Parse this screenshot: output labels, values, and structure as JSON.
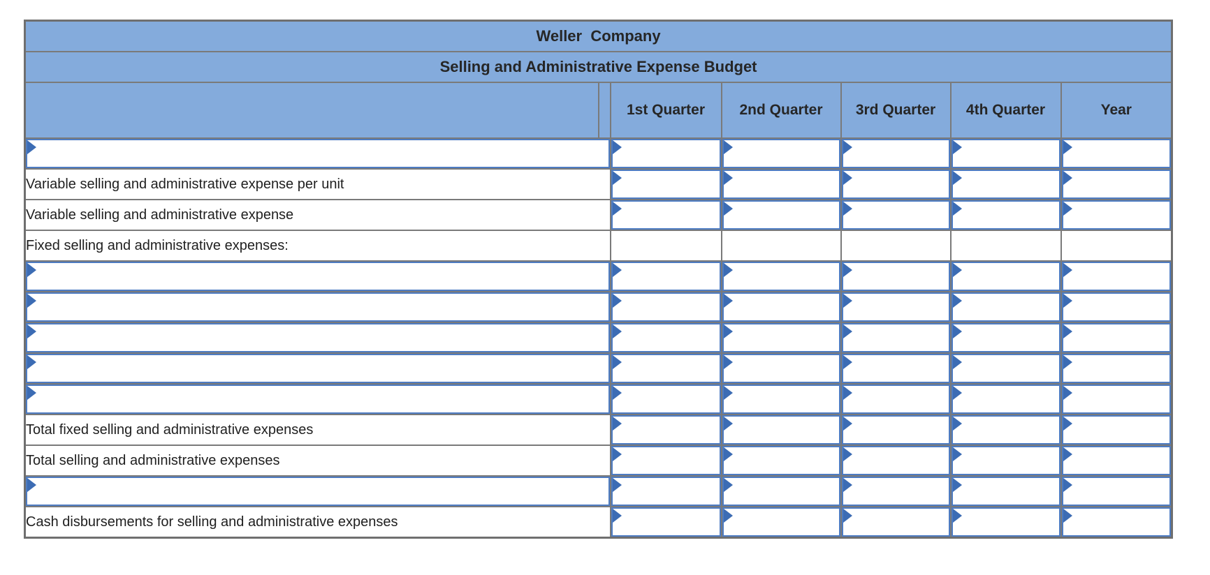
{
  "table": {
    "title": "Weller  Company",
    "subtitle": "Selling and Administrative Expense Budget",
    "columns": [
      "",
      "1st Quarter",
      "2nd Quarter",
      "3rd Quarter",
      "4th Quarter",
      "Year"
    ],
    "column_keys": [
      "1st-quarter",
      "2nd-quarter",
      "3rd-quarter",
      "4th-quarter",
      "year"
    ],
    "rows": [
      {
        "label": "",
        "label_editable": true,
        "values_editable": true,
        "rule_below": "none",
        "values": [
          "",
          "",
          "",
          "",
          ""
        ]
      },
      {
        "label": "Variable selling and administrative expense per unit",
        "label_editable": false,
        "values_editable": true,
        "rule_below": "single",
        "values": [
          "",
          "",
          "",
          "",
          ""
        ]
      },
      {
        "label": "Variable selling and administrative expense",
        "label_editable": false,
        "values_editable": true,
        "rule_below": "none",
        "values": [
          "",
          "",
          "",
          "",
          ""
        ]
      },
      {
        "label": "Fixed selling and administrative expenses:",
        "label_editable": false,
        "values_editable": false,
        "rule_below": "none",
        "values": [
          "",
          "",
          "",
          "",
          ""
        ]
      },
      {
        "label": "",
        "label_editable": true,
        "values_editable": true,
        "rule_below": "none",
        "values": [
          "",
          "",
          "",
          "",
          ""
        ]
      },
      {
        "label": "",
        "label_editable": true,
        "values_editable": true,
        "rule_below": "none",
        "values": [
          "",
          "",
          "",
          "",
          ""
        ]
      },
      {
        "label": "",
        "label_editable": true,
        "values_editable": true,
        "rule_below": "none",
        "values": [
          "",
          "",
          "",
          "",
          ""
        ]
      },
      {
        "label": "",
        "label_editable": true,
        "values_editable": true,
        "rule_below": "none",
        "values": [
          "",
          "",
          "",
          "",
          ""
        ]
      },
      {
        "label": "",
        "label_editable": true,
        "values_editable": true,
        "rule_below": "single",
        "values": [
          "",
          "",
          "",
          "",
          ""
        ]
      },
      {
        "label": "Total fixed selling and administrative expenses",
        "label_editable": false,
        "values_editable": true,
        "rule_below": "single",
        "values": [
          "",
          "",
          "",
          "",
          ""
        ]
      },
      {
        "label": "Total selling and administrative expenses",
        "label_editable": false,
        "values_editable": true,
        "rule_below": "none",
        "values": [
          "",
          "",
          "",
          "",
          ""
        ]
      },
      {
        "label": "",
        "label_editable": true,
        "values_editable": true,
        "rule_below": "single",
        "values": [
          "",
          "",
          "",
          "",
          ""
        ]
      },
      {
        "label": "Cash disbursements for selling and administrative expenses",
        "label_editable": false,
        "values_editable": true,
        "rule_below": "thick",
        "values": [
          "",
          "",
          "",
          "",
          ""
        ]
      }
    ]
  },
  "icons": {
    "cell_marker": "entry-cell-flag-marker"
  },
  "colors": {
    "header_bg": "#84ABDC",
    "grid_line": "#7A7A7A",
    "outer_border": "#6F6F6F",
    "entry_outline": "#4E7CC2",
    "marker_blue": "#3C6CB4",
    "rule_line": "#000000",
    "label_text": "#1F1F1F",
    "header_text": "#262626",
    "cell_bg": "#FFFFFF"
  }
}
